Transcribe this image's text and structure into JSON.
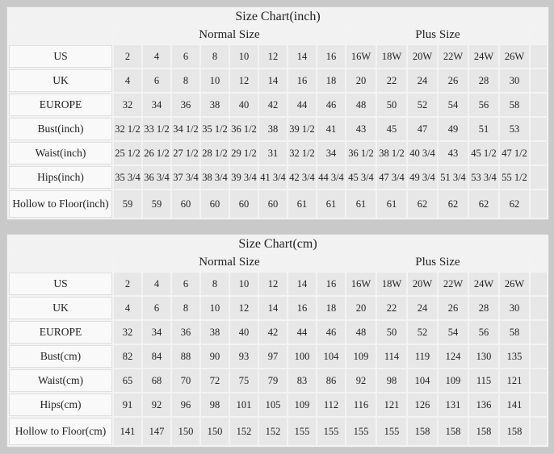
{
  "colors": {
    "page_bg": "#c9c9c9",
    "table_bg": "#f3f3f3",
    "cell_bg": "#e7e7e7",
    "label_bg": "#f9f9f9"
  },
  "chart_data": [
    {
      "type": "table",
      "title": "Size Chart(inch)",
      "group_headers": [
        {
          "label": "Normal Size",
          "span": 8
        },
        {
          "label": "Plus Size",
          "span": 6
        }
      ],
      "rows": [
        {
          "label": "US",
          "values": [
            "2",
            "4",
            "6",
            "8",
            "10",
            "12",
            "14",
            "16",
            "16W",
            "18W",
            "20W",
            "22W",
            "24W",
            "26W"
          ]
        },
        {
          "label": "UK",
          "values": [
            "4",
            "6",
            "8",
            "10",
            "12",
            "14",
            "16",
            "18",
            "20",
            "22",
            "24",
            "26",
            "28",
            "30"
          ]
        },
        {
          "label": "EUROPE",
          "values": [
            "32",
            "34",
            "36",
            "38",
            "40",
            "42",
            "44",
            "46",
            "48",
            "50",
            "52",
            "54",
            "56",
            "58"
          ]
        },
        {
          "label": "Bust(inch)",
          "values": [
            "32 1/2",
            "33 1/2",
            "34 1/2",
            "35 1/2",
            "36 1/2",
            "38",
            "39 1/2",
            "41",
            "43",
            "45",
            "47",
            "49",
            "51",
            "53"
          ]
        },
        {
          "label": "Waist(inch)",
          "values": [
            "25 1/2",
            "26 1/2",
            "27 1/2",
            "28 1/2",
            "29 1/2",
            "31",
            "32 1/2",
            "34",
            "36 1/2",
            "38 1/2",
            "40 3/4",
            "43",
            "45 1/2",
            "47 1/2"
          ]
        },
        {
          "label": "Hips(inch)",
          "values": [
            "35 3/4",
            "36 3/4",
            "37 3/4",
            "38 3/4",
            "39 3/4",
            "41 3/4",
            "42 3/4",
            "44 3/4",
            "45 3/4",
            "47 3/4",
            "49 3/4",
            "51 3/4",
            "53 3/4",
            "55 1/2"
          ]
        },
        {
          "label": "Hollow to Floor(inch)",
          "values": [
            "59",
            "59",
            "60",
            "60",
            "60",
            "60",
            "61",
            "61",
            "61",
            "61",
            "62",
            "62",
            "62",
            "62"
          ]
        }
      ]
    },
    {
      "type": "table",
      "title": "Size Chart(cm)",
      "group_headers": [
        {
          "label": "Normal Size",
          "span": 8
        },
        {
          "label": "Plus Size",
          "span": 6
        }
      ],
      "rows": [
        {
          "label": "US",
          "values": [
            "2",
            "4",
            "6",
            "8",
            "10",
            "12",
            "14",
            "16",
            "16W",
            "18W",
            "20W",
            "22W",
            "24W",
            "26W"
          ]
        },
        {
          "label": "UK",
          "values": [
            "4",
            "6",
            "8",
            "10",
            "12",
            "14",
            "16",
            "18",
            "20",
            "22",
            "24",
            "26",
            "28",
            "30"
          ]
        },
        {
          "label": "EUROPE",
          "values": [
            "32",
            "34",
            "36",
            "38",
            "40",
            "42",
            "44",
            "46",
            "48",
            "50",
            "52",
            "54",
            "56",
            "58"
          ]
        },
        {
          "label": "Bust(cm)",
          "values": [
            "82",
            "84",
            "88",
            "90",
            "93",
            "97",
            "100",
            "104",
            "109",
            "114",
            "119",
            "124",
            "130",
            "135"
          ]
        },
        {
          "label": "Waist(cm)",
          "values": [
            "65",
            "68",
            "70",
            "72",
            "75",
            "79",
            "83",
            "86",
            "92",
            "98",
            "104",
            "109",
            "115",
            "121"
          ]
        },
        {
          "label": "Hips(cm)",
          "values": [
            "91",
            "92",
            "96",
            "98",
            "101",
            "105",
            "109",
            "112",
            "116",
            "121",
            "126",
            "131",
            "136",
            "141"
          ]
        },
        {
          "label": "Hollow to Floor(cm)",
          "values": [
            "141",
            "147",
            "150",
            "150",
            "152",
            "152",
            "155",
            "155",
            "155",
            "155",
            "158",
            "158",
            "158",
            "158"
          ]
        }
      ]
    }
  ]
}
